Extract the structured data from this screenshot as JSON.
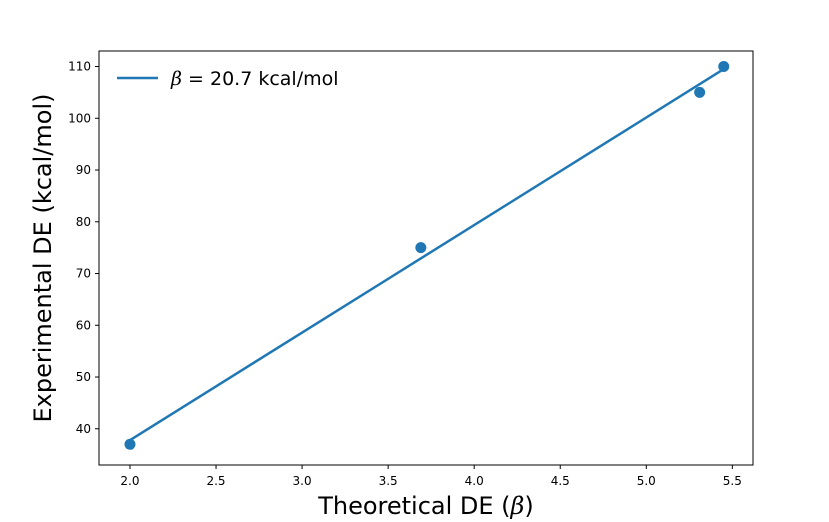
{
  "chart_data": {
    "type": "scatter",
    "xlabel_prefix": "Theoretical DE (",
    "xlabel_symbol": "β",
    "xlabel_suffix": ")",
    "ylabel": "Experimental DE (kcal/mol)",
    "xlim": [
      1.82,
      5.62
    ],
    "ylim": [
      33,
      113
    ],
    "xticks": [
      2.0,
      2.5,
      3.0,
      3.5,
      4.0,
      4.5,
      5.0,
      5.5
    ],
    "xtick_labels": [
      "2.0",
      "2.5",
      "3.0",
      "3.5",
      "4.0",
      "4.5",
      "5.0",
      "5.5"
    ],
    "yticks": [
      40,
      50,
      60,
      70,
      80,
      90,
      100,
      110
    ],
    "ytick_labels": [
      "40",
      "50",
      "60",
      "70",
      "80",
      "90",
      "100",
      "110"
    ],
    "grid": false,
    "legend_position": "top-left",
    "series": [
      {
        "kind": "points",
        "x": [
          2.0,
          3.69,
          5.31,
          5.45
        ],
        "y": [
          37,
          75,
          105,
          110
        ],
        "color": "#1f77b4"
      },
      {
        "kind": "fit-line",
        "legend_symbol": "β",
        "legend_suffix": " = 20.7 kcal/mol",
        "x": [
          2.0,
          5.45
        ],
        "y": [
          37.8,
          109.5
        ],
        "color": "#1f77b4"
      }
    ]
  }
}
